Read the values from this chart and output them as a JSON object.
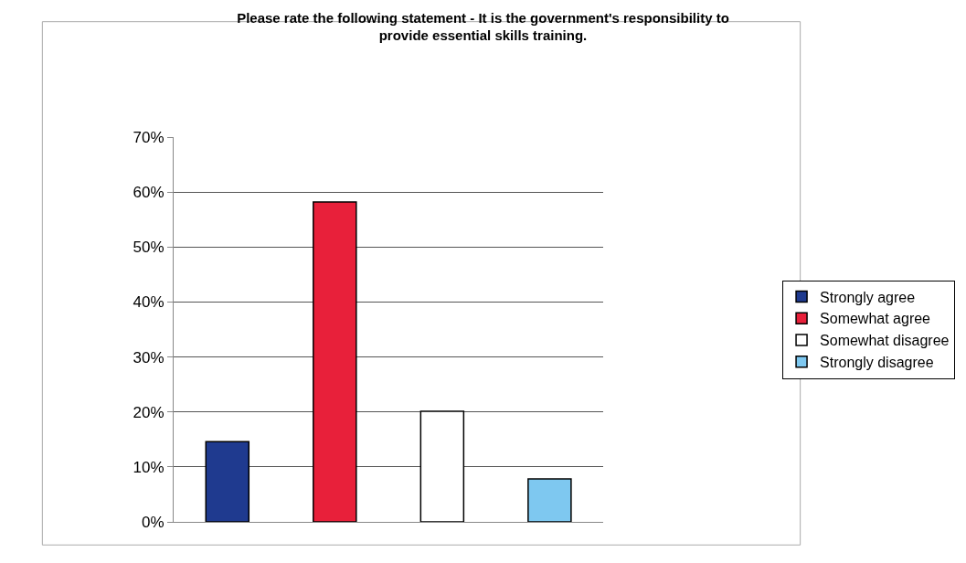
{
  "chart_data": {
    "type": "bar",
    "title": "Please rate the following statement - It is the government's responsibility to provide essential skills training.",
    "categories": [
      null,
      null,
      null,
      null
    ],
    "series": [
      {
        "name": "Strongly agree",
        "color": "#1f3a8f",
        "values": [
          14.6,
          null,
          null,
          null
        ]
      },
      {
        "name": "Somewhat agree",
        "color": "#e8203a",
        "values": [
          null,
          58.2,
          null,
          null
        ]
      },
      {
        "name": "Somewhat disagree",
        "color": "#ffffff",
        "values": [
          null,
          null,
          20.1,
          null
        ]
      },
      {
        "name": "Strongly disagree",
        "color": "#7ec8f0",
        "values": [
          null,
          null,
          null,
          7.8
        ]
      }
    ],
    "ylim": [
      0,
      70
    ],
    "yticks": [
      {
        "value": 0,
        "label": "0%"
      },
      {
        "value": 10,
        "label": "10%"
      },
      {
        "value": 20,
        "label": "20%"
      },
      {
        "value": 30,
        "label": "30%"
      },
      {
        "value": 40,
        "label": "40%"
      },
      {
        "value": 50,
        "label": "50%"
      },
      {
        "value": 60,
        "label": "60%"
      },
      {
        "value": 70,
        "label": "70%"
      }
    ],
    "grid": "y",
    "legend": "right",
    "tick_labels": "y"
  }
}
